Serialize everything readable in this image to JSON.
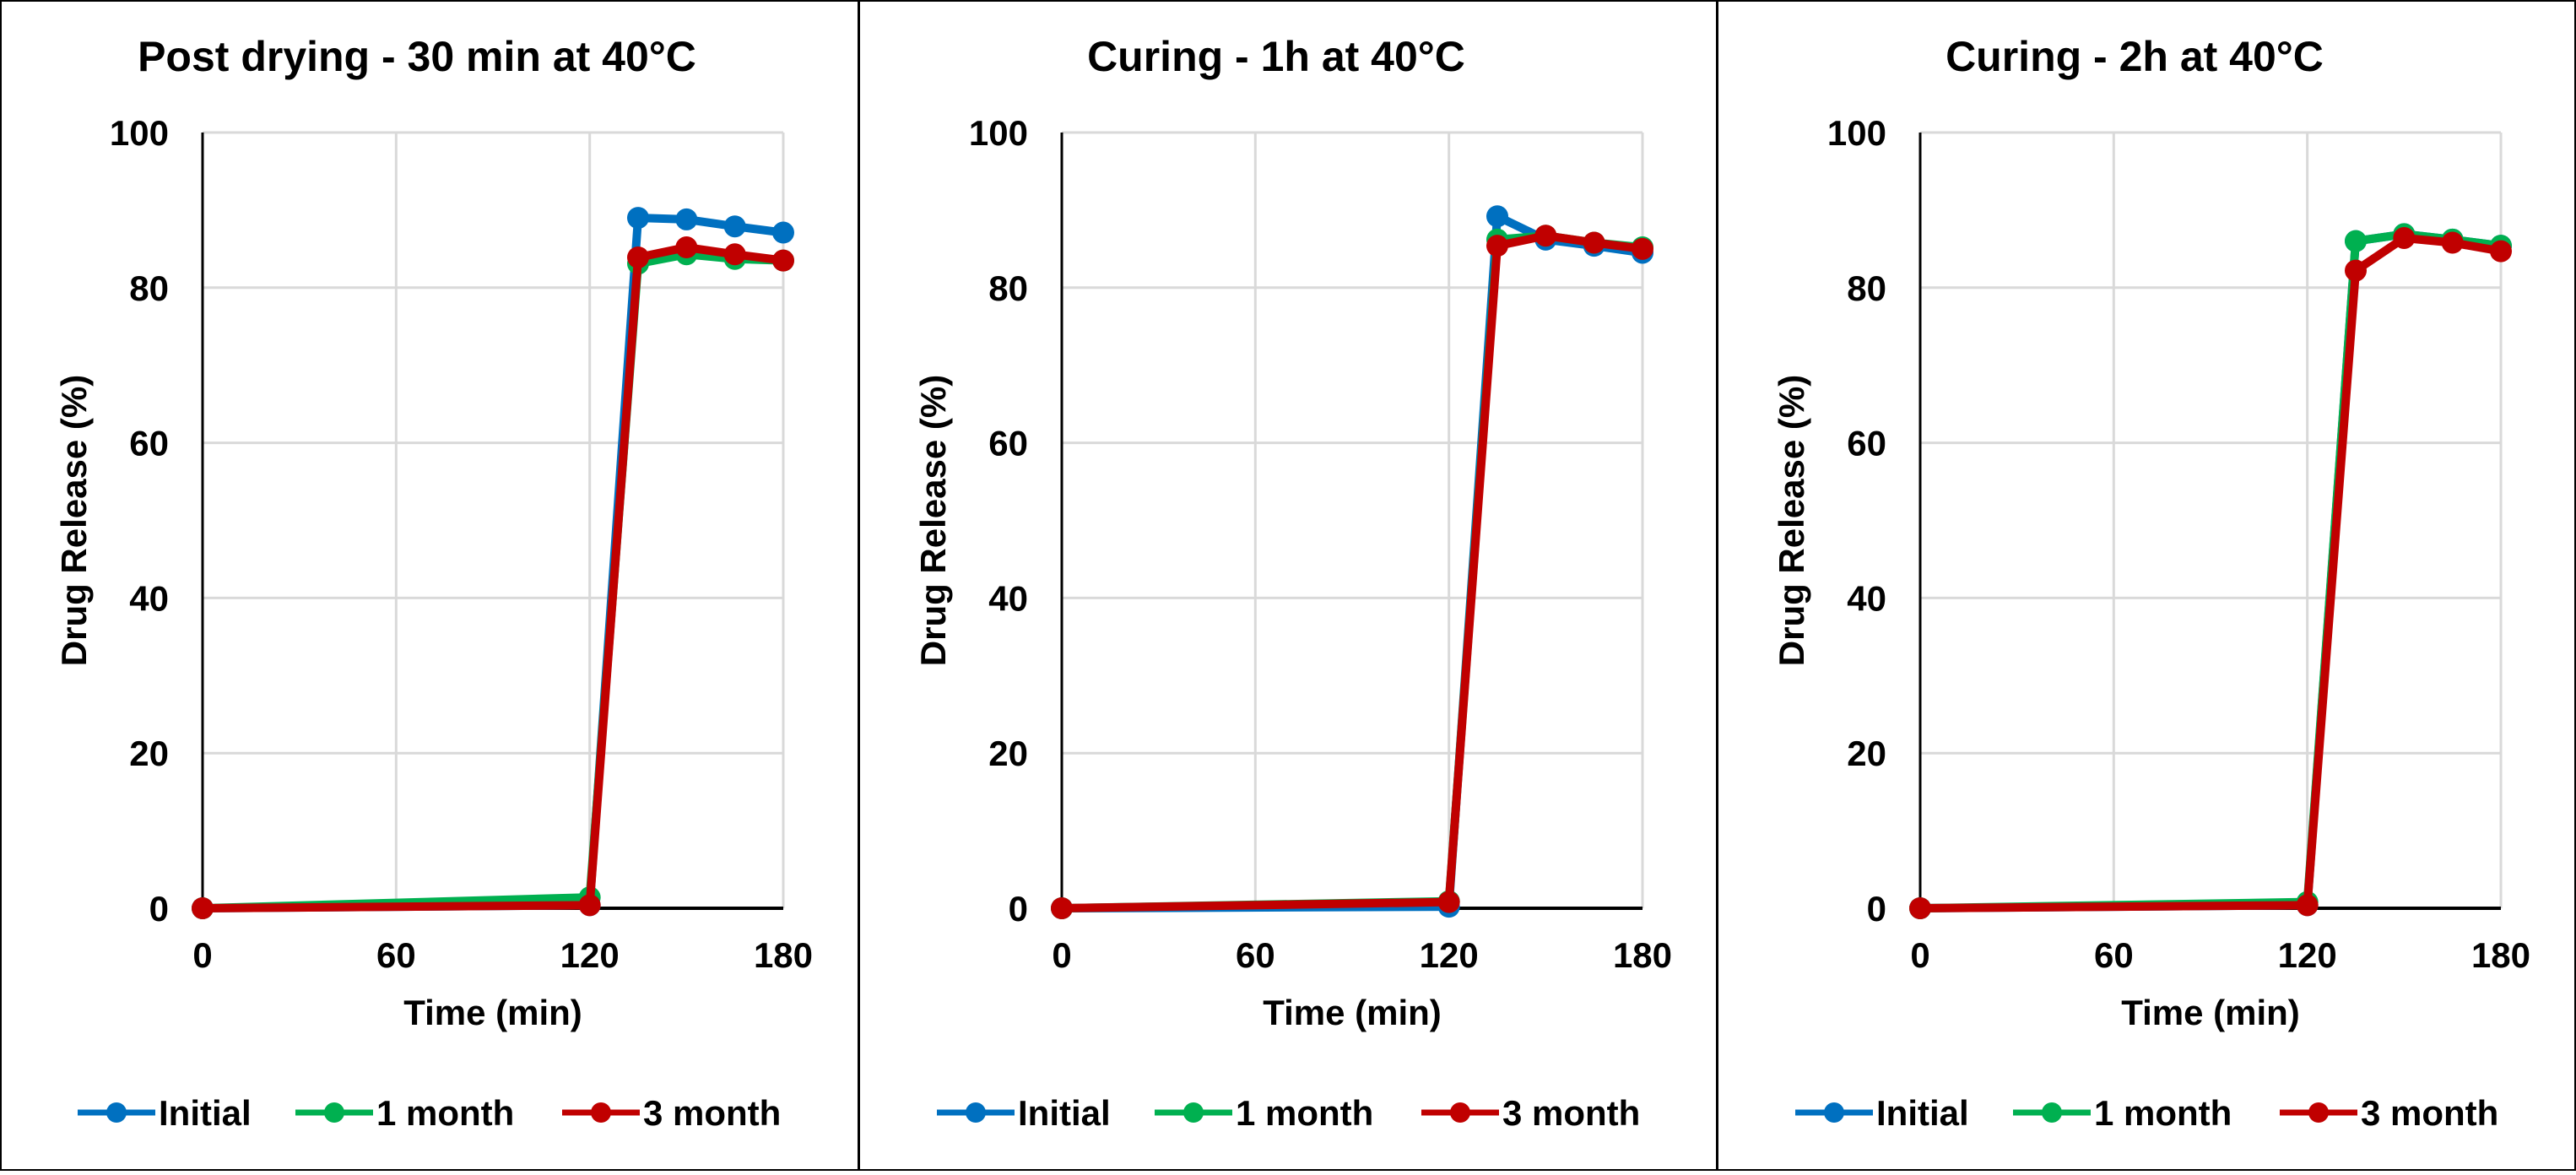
{
  "colors": {
    "Initial": "#0070C0",
    "1 month": "#00B050",
    "3 month": "#C00000"
  },
  "chart_data": [
    {
      "type": "line",
      "title": "Post drying - 30 min at 40°C",
      "xlabel": "Time (min)",
      "ylabel": "Drug Release (%)",
      "xlim": [
        0,
        180
      ],
      "ylim": [
        0,
        100
      ],
      "xticks": [
        0,
        60,
        120,
        180
      ],
      "yticks": [
        0,
        20,
        40,
        60,
        80,
        100
      ],
      "grid": true,
      "legend": "bottom",
      "x": [
        0,
        120,
        135,
        150,
        165,
        180
      ],
      "series": [
        {
          "name": "Initial",
          "values": [
            0,
            0.4,
            89.0,
            88.8,
            87.9,
            87.1
          ]
        },
        {
          "name": "1 month",
          "values": [
            0,
            1.4,
            83.1,
            84.3,
            83.7,
            83.5
          ]
        },
        {
          "name": "3 month",
          "values": [
            0,
            0.4,
            83.9,
            85.2,
            84.3,
            83.5
          ]
        }
      ]
    },
    {
      "type": "line",
      "title": "Curing - 1h at 40°C",
      "xlabel": "Time (min)",
      "ylabel": "Drug Release (%)",
      "xlim": [
        0,
        180
      ],
      "ylim": [
        0,
        100
      ],
      "xticks": [
        0,
        60,
        120,
        180
      ],
      "yticks": [
        0,
        20,
        40,
        60,
        80,
        100
      ],
      "grid": true,
      "legend": "bottom",
      "x": [
        0,
        120,
        135,
        150,
        165,
        180
      ],
      "series": [
        {
          "name": "Initial",
          "values": [
            0,
            0.2,
            89.2,
            86.2,
            85.4,
            84.5
          ]
        },
        {
          "name": "1 month",
          "values": [
            0,
            0.9,
            86.2,
            86.7,
            85.8,
            85.2
          ]
        },
        {
          "name": "3 month",
          "values": [
            0,
            0.8,
            85.4,
            86.7,
            85.8,
            85.0
          ]
        }
      ]
    },
    {
      "type": "line",
      "title": "Curing - 2h at 40°C",
      "xlabel": "Time (min)",
      "ylabel": "Drug Release (%)",
      "xlim": [
        0,
        180
      ],
      "ylim": [
        0,
        100
      ],
      "xticks": [
        0,
        60,
        120,
        180
      ],
      "yticks": [
        0,
        20,
        40,
        60,
        80,
        100
      ],
      "grid": true,
      "legend": "bottom",
      "x": [
        0,
        120,
        135,
        150,
        165,
        180
      ],
      "series": [
        {
          "name": "Initial",
          "values": [
            0,
            0.4,
            86.0,
            86.9,
            86.2,
            85.4
          ]
        },
        {
          "name": "1 month",
          "values": [
            0,
            0.8,
            86.0,
            86.9,
            86.2,
            85.4
          ]
        },
        {
          "name": "3 month",
          "values": [
            0,
            0.4,
            82.2,
            86.4,
            85.8,
            84.7
          ]
        }
      ]
    }
  ]
}
